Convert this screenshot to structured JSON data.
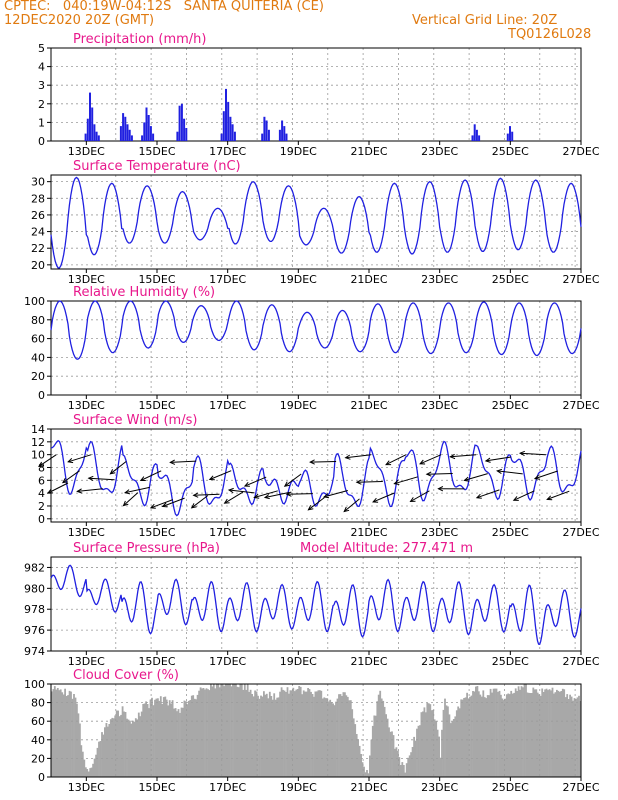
{
  "header": {
    "line1": "CPTEC:   040:19W-04:12S   SANTA QUITERIA (CE)",
    "line2": "12DEC2020 20Z (GMT)",
    "grid_note": "Vertical Grid Line: 20Z",
    "run_code": "TQ0126L028"
  },
  "colors": {
    "header": "#e07a10",
    "title": "#e8188c",
    "series": "#2020e0",
    "cloud": "#a8a8a8",
    "grid": "#9a9a9a"
  },
  "x_tick_labels": [
    "13DEC",
    "15DEC",
    "17DEC",
    "19DEC",
    "21DEC",
    "23DEC",
    "25DEC",
    "27DEC"
  ],
  "chart_data": [
    {
      "type": "bar",
      "title": "Precipitation (mm/h)",
      "ylim": [
        0,
        5
      ],
      "yticks": [
        0,
        1,
        2,
        3,
        4,
        5
      ],
      "x": [
        "13DEC",
        "15DEC",
        "17DEC",
        "19DEC",
        "21DEC",
        "23DEC",
        "25DEC",
        "27DEC"
      ],
      "events": [
        {
          "day": 12.95,
          "values": [
            0.4,
            1.2,
            2.6,
            1.8,
            0.9,
            0.5,
            0.3
          ]
        },
        {
          "day": 13.95,
          "values": [
            0.8,
            1.5,
            1.3,
            0.9,
            0.6,
            0.3
          ]
        },
        {
          "day": 14.55,
          "values": [
            0.3,
            1.0,
            1.8,
            1.4,
            0.8,
            0.4
          ]
        },
        {
          "day": 15.55,
          "values": [
            0.5,
            1.9,
            2.0,
            1.2,
            0.7
          ]
        },
        {
          "day": 16.8,
          "values": [
            0.4,
            1.6,
            2.8,
            2.1,
            1.3,
            0.9,
            0.5
          ]
        },
        {
          "day": 17.95,
          "values": [
            0.4,
            1.3,
            1.1,
            0.6
          ]
        },
        {
          "day": 18.45,
          "values": [
            0.6,
            1.1,
            0.8,
            0.4
          ]
        },
        {
          "day": 23.9,
          "values": [
            0.3,
            0.9,
            0.6,
            0.3
          ]
        },
        {
          "day": 24.9,
          "values": [
            0.4,
            0.8,
            0.5
          ]
        }
      ]
    },
    {
      "type": "line",
      "title": "Surface Temperature (nC)",
      "ylim": [
        19.5,
        30.8
      ],
      "yticks": [
        20,
        22,
        24,
        26,
        28,
        30
      ],
      "x": [
        "13DEC",
        "15DEC",
        "17DEC",
        "19DEC",
        "21DEC",
        "23DEC",
        "25DEC",
        "27DEC"
      ],
      "daily_max": [
        30.5,
        29.8,
        29.5,
        28.8,
        26.8,
        30.0,
        29.5,
        26.8,
        28.2,
        29.8,
        30.0,
        30.2,
        30.4,
        30.2,
        29.8,
        29.5,
        29.2
      ],
      "daily_min": [
        19.6,
        21.2,
        22.6,
        22.6,
        23.0,
        22.5,
        22.8,
        22.4,
        21.4,
        21.5,
        21.3,
        21.5,
        21.6,
        21.8,
        21.5,
        21.2,
        21.0
      ]
    },
    {
      "type": "line",
      "title": "Relative Humidity (%)",
      "ylim": [
        0,
        100
      ],
      "yticks": [
        0,
        20,
        40,
        60,
        80,
        100
      ],
      "x": [
        "13DEC",
        "15DEC",
        "17DEC",
        "19DEC",
        "21DEC",
        "23DEC",
        "25DEC",
        "27DEC"
      ],
      "daily_max": [
        100,
        100,
        100,
        100,
        95,
        100,
        96,
        88,
        90,
        97,
        98,
        98,
        99,
        98,
        98,
        100,
        100
      ],
      "daily_min": [
        38,
        45,
        50,
        56,
        58,
        48,
        46,
        50,
        46,
        45,
        44,
        45,
        43,
        42,
        44,
        46,
        48
      ]
    },
    {
      "type": "line",
      "title": "Surface Wind (m/s)",
      "ylim": [
        -0.5,
        14
      ],
      "yticks": [
        0,
        2,
        4,
        6,
        8,
        10,
        12,
        14
      ],
      "x": [
        "13DEC",
        "15DEC",
        "17DEC",
        "19DEC",
        "21DEC",
        "23DEC",
        "25DEC",
        "27DEC"
      ],
      "daily_max": [
        12.5,
        11.0,
        9.0,
        7.5,
        9.0,
        7.5,
        6.5,
        7.0,
        9.0,
        10.5,
        11.0,
        11.0,
        10.5,
        10.0,
        10.5,
        11.0,
        11.5
      ],
      "daily_min": [
        4.5,
        3.5,
        3.0,
        1.5,
        2.0,
        3.0,
        3.5,
        2.5,
        2.0,
        3.0,
        3.5,
        4.0,
        4.0,
        4.0,
        4.0,
        4.5,
        4.0
      ],
      "vectors": "wind barbs from NE to E, about every 8 hours"
    },
    {
      "type": "line",
      "title": "Surface Pressure (hPa)",
      "annotation": "Model Altitude: 277.471 m",
      "ylim": [
        974,
        983
      ],
      "yticks": [
        974,
        976,
        978,
        980,
        982
      ],
      "x": [
        "13DEC",
        "15DEC",
        "17DEC",
        "19DEC",
        "21DEC",
        "23DEC",
        "25DEC",
        "27DEC"
      ],
      "daily_max": [
        982.3,
        981.0,
        980.8,
        981.0,
        980.8,
        980.7,
        980.5,
        980.8,
        980.5,
        981.0,
        980.8,
        980.8,
        980.5,
        980.5,
        980.0,
        980.3,
        980.8
      ],
      "daily_min": [
        979.0,
        977.5,
        975.3,
        976.2,
        975.5,
        975.5,
        975.8,
        975.5,
        975.0,
        975.5,
        975.5,
        975.2,
        975.5,
        974.2,
        975.0,
        974.8,
        975.0
      ]
    },
    {
      "type": "area",
      "title": "Cloud Cover (%)",
      "ylim": [
        0,
        100
      ],
      "yticks": [
        0,
        20,
        40,
        60,
        80,
        100
      ],
      "x": [
        "13DEC",
        "15DEC",
        "17DEC",
        "19DEC",
        "21DEC",
        "23DEC",
        "25DEC",
        "27DEC"
      ],
      "profile": [
        [
          12.0,
          96
        ],
        [
          12.4,
          92
        ],
        [
          12.7,
          85
        ],
        [
          12.9,
          15
        ],
        [
          13.05,
          5
        ],
        [
          13.3,
          35
        ],
        [
          13.7,
          65
        ],
        [
          14.0,
          72
        ],
        [
          14.3,
          60
        ],
        [
          14.6,
          75
        ],
        [
          15.0,
          84
        ],
        [
          15.4,
          80
        ],
        [
          15.6,
          70
        ],
        [
          15.8,
          80
        ],
        [
          16.2,
          92
        ],
        [
          16.5,
          95
        ],
        [
          16.8,
          100
        ],
        [
          17.2,
          100
        ],
        [
          17.5,
          96
        ],
        [
          17.8,
          88
        ],
        [
          18.0,
          90
        ],
        [
          18.3,
          85
        ],
        [
          18.6,
          95
        ],
        [
          19.0,
          93
        ],
        [
          19.4,
          90
        ],
        [
          19.7,
          88
        ],
        [
          20.0,
          80
        ],
        [
          20.3,
          90
        ],
        [
          20.5,
          75
        ],
        [
          20.7,
          35
        ],
        [
          20.8,
          10
        ],
        [
          20.95,
          2
        ],
        [
          21.1,
          60
        ],
        [
          21.3,
          92
        ],
        [
          21.55,
          55
        ],
        [
          21.75,
          30
        ],
        [
          21.9,
          12
        ],
        [
          22.0,
          8
        ],
        [
          22.15,
          25
        ],
        [
          22.3,
          45
        ],
        [
          22.5,
          70
        ],
        [
          22.7,
          80
        ],
        [
          22.9,
          60
        ],
        [
          23.0,
          25
        ],
        [
          23.1,
          85
        ],
        [
          23.3,
          60
        ],
        [
          23.5,
          75
        ],
        [
          23.8,
          88
        ],
        [
          24.0,
          96
        ],
        [
          24.2,
          88
        ],
        [
          24.5,
          94
        ],
        [
          24.8,
          85
        ],
        [
          25.0,
          90
        ],
        [
          25.4,
          96
        ],
        [
          25.8,
          90
        ],
        [
          26.2,
          94
        ],
        [
          26.6,
          88
        ],
        [
          27.0,
          85
        ]
      ]
    }
  ]
}
